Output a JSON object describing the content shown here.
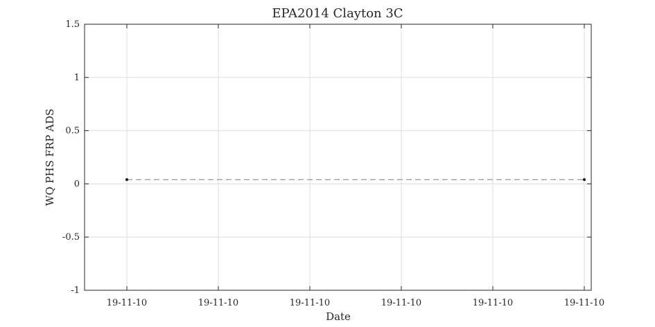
{
  "chart_data": {
    "type": "line",
    "title": "EPA2014 Clayton 3C",
    "xlabel": "Date",
    "ylabel": "WQ PHS FRP ADS",
    "x_tick_labels": [
      "19-11-10",
      "19-11-10",
      "19-11-10",
      "19-11-10",
      "19-11-10",
      "19-11-10"
    ],
    "y_tick_labels": [
      "1.5",
      "1",
      "0.5",
      "0",
      "-0.5",
      "-1"
    ],
    "y_ticks": [
      1.5,
      1,
      0.5,
      0,
      -0.5,
      -1
    ],
    "ylim": [
      -1,
      1.5
    ],
    "grid": true,
    "series": [
      {
        "line_style": "dashed",
        "marker": "dot",
        "color": "#1a1a1a",
        "line_color": "#7f7f7f",
        "points": [
          {
            "x": "19-11-10",
            "y": 0.04
          },
          {
            "x": "19-11-10",
            "y": 0.04
          }
        ]
      }
    ]
  }
}
